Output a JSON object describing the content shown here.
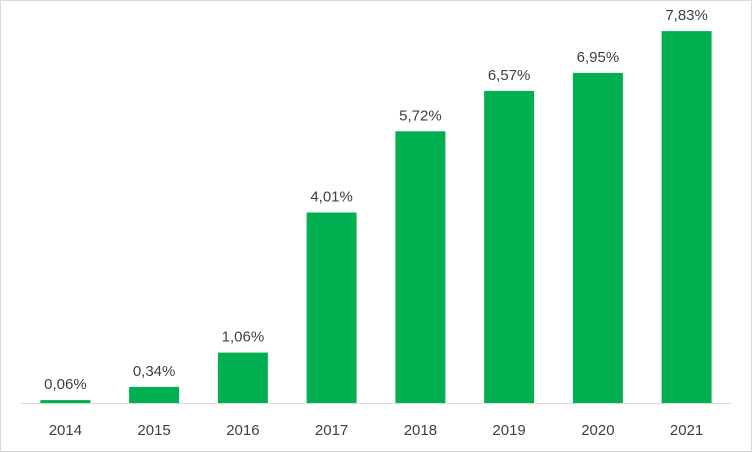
{
  "chart_data": {
    "type": "bar",
    "categories": [
      "2014",
      "2015",
      "2016",
      "2017",
      "2018",
      "2019",
      "2020",
      "2021"
    ],
    "values": [
      0.06,
      0.34,
      1.06,
      4.01,
      5.72,
      6.57,
      6.95,
      7.83
    ],
    "data_labels": [
      "0,06%",
      "0,34%",
      "1,06%",
      "4,01%",
      "5,72%",
      "6,57%",
      "6,95%",
      "7,83%"
    ],
    "title": "",
    "xlabel": "",
    "ylabel": "",
    "ylim": [
      0,
      8
    ],
    "grid": false,
    "legend": "none",
    "bar_color": "#00b050",
    "label_color": "#404040",
    "axis_color": "#d9d9d9"
  }
}
